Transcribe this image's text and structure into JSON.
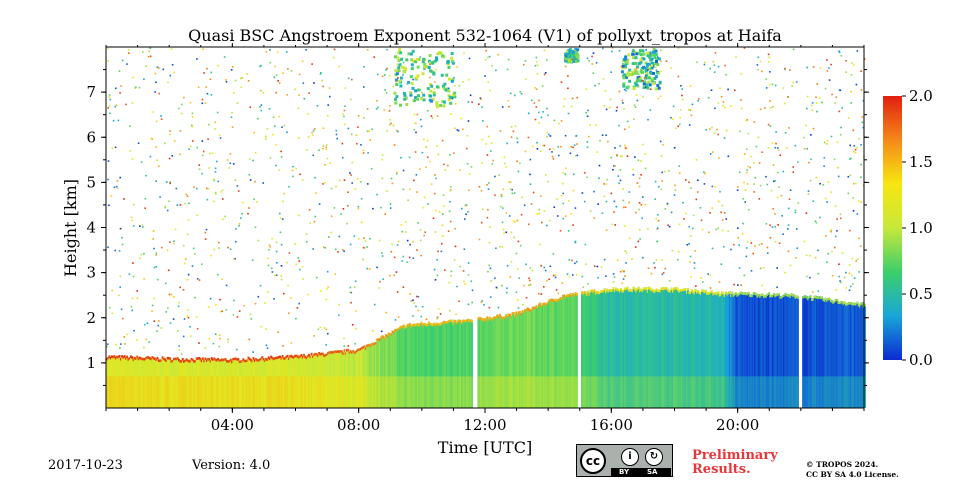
{
  "chart_data": {
    "type": "heatmap",
    "title": "Quasi BSC Angstroem Exponent 532-1064 (V1) of pollyxt_tropos at Haifa",
    "xlabel": "Time [UTC]",
    "ylabel": "Height [km]",
    "xlim": [
      0,
      24
    ],
    "ylim": [
      0,
      8
    ],
    "x_ticks": [
      {
        "value": 4,
        "label": "04:00"
      },
      {
        "value": 8,
        "label": "08:00"
      },
      {
        "value": 12,
        "label": "12:00"
      },
      {
        "value": 16,
        "label": "16:00"
      },
      {
        "value": 20,
        "label": "20:00"
      }
    ],
    "y_ticks": [
      {
        "value": 1,
        "label": "1"
      },
      {
        "value": 2,
        "label": "2"
      },
      {
        "value": 3,
        "label": "3"
      },
      {
        "value": 4,
        "label": "4"
      },
      {
        "value": 5,
        "label": "5"
      },
      {
        "value": 6,
        "label": "6"
      },
      {
        "value": 7,
        "label": "7"
      }
    ],
    "colorbar": {
      "range": [
        0.0,
        2.0
      ],
      "ticks": [
        {
          "value": 0.0,
          "label": "0.0"
        },
        {
          "value": 0.5,
          "label": "0.5"
        },
        {
          "value": 1.0,
          "label": "1.0"
        },
        {
          "value": 1.5,
          "label": "1.5"
        },
        {
          "value": 2.0,
          "label": "2.0"
        }
      ],
      "colors": [
        "#0a2ad0",
        "#1aa6d8",
        "#3ccf6a",
        "#c6e83a",
        "#f8e610",
        "#f38a18",
        "#e21e10"
      ]
    },
    "layer_top_km": [
      {
        "time": 0,
        "top": 1.15,
        "value": 1.15
      },
      {
        "time": 2,
        "top": 1.1,
        "value": 1.1
      },
      {
        "time": 4,
        "top": 1.08,
        "value": 1.1
      },
      {
        "time": 6,
        "top": 1.15,
        "value": 1.1
      },
      {
        "time": 8,
        "top": 1.3,
        "value": 1.0
      },
      {
        "time": 9.5,
        "top": 1.85,
        "value": 0.7
      },
      {
        "time": 11.5,
        "top": 1.95,
        "value": 0.7
      },
      {
        "time": 13,
        "top": 2.1,
        "value": 0.8
      },
      {
        "time": 14.5,
        "top": 2.5,
        "value": 0.75
      },
      {
        "time": 16,
        "top": 2.65,
        "value": 0.5
      },
      {
        "time": 18,
        "top": 2.65,
        "value": 0.5
      },
      {
        "time": 19.5,
        "top": 2.55,
        "value": 0.45
      },
      {
        "time": 20,
        "top": 2.55,
        "value": 0.1
      },
      {
        "time": 22,
        "top": 2.5,
        "value": 0.1
      },
      {
        "time": 24,
        "top": 2.3,
        "value": 0.15
      }
    ],
    "data_gaps_utc": [
      [
        11.6,
        11.75
      ],
      [
        14.9,
        15.05
      ],
      [
        21.9,
        22.05
      ]
    ],
    "upper_cloud_patches": [
      {
        "time_start": 9.1,
        "time_end": 11.0,
        "height_bottom": 6.7,
        "height_top": 8.0,
        "value": 0.7
      },
      {
        "time_start": 14.5,
        "time_end": 14.9,
        "height_bottom": 7.7,
        "height_top": 8.0,
        "value": 0.6
      },
      {
        "time_start": 16.3,
        "time_end": 17.5,
        "height_bottom": 7.1,
        "height_top": 8.0,
        "value": 0.6
      }
    ]
  },
  "footer": {
    "date": "2017-10-23",
    "version": "Version: 4.0",
    "license_badge": {
      "by": "BY",
      "sa": "SA"
    },
    "preliminary_line1": "Preliminary",
    "preliminary_line2": "Results.",
    "copyright_line1": "© TROPOS 2024.",
    "copyright_line2": "CC BY SA 4.0 License."
  }
}
